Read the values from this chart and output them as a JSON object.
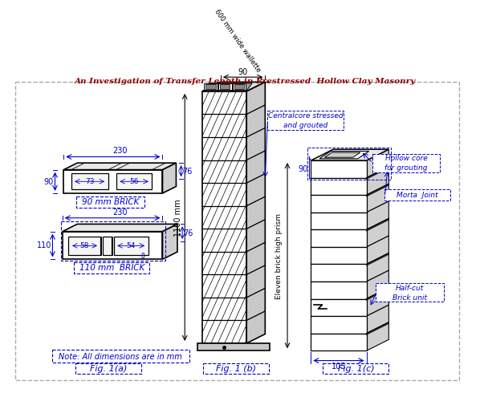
{
  "title": "An Investigation of Transfer Length in Prestressed  Hollow Clay Masonry",
  "title_color": "#8B0000",
  "bg_color": "#ffffff",
  "fig1a_label": "Fig. 1(a)",
  "fig1b_label": "Fig. 1 (b)",
  "fig1c_label": "Fig. 1(c)",
  "note_text": "Note: All dimensions are in mm",
  "brick90_label": "90 mm BRICK",
  "brick110_label": "110 mm  BRICK",
  "dim_230": "230",
  "dim_90": "90",
  "dim_73": "73",
  "dim_56": "56",
  "dim_76": "76",
  "dim_110": "110",
  "dim_58": "58",
  "dim_54": "54",
  "dim_8": "8",
  "dim_1100": "1100 mm",
  "dim_600": "600 mm wide wallette",
  "dim_90b": "90",
  "dim_105": "105",
  "label_central": "Centralcore stressed\nand grouted",
  "label_hollow": "Hollow core\nfor grouting",
  "label_mortar": "Morta  Joint",
  "label_halfcut": "Half-cut\nBrick unit",
  "label_eleven": "Eleven brick high prism",
  "lc": "#000000",
  "dc": "#0000CD",
  "lbc": "#0000CD"
}
